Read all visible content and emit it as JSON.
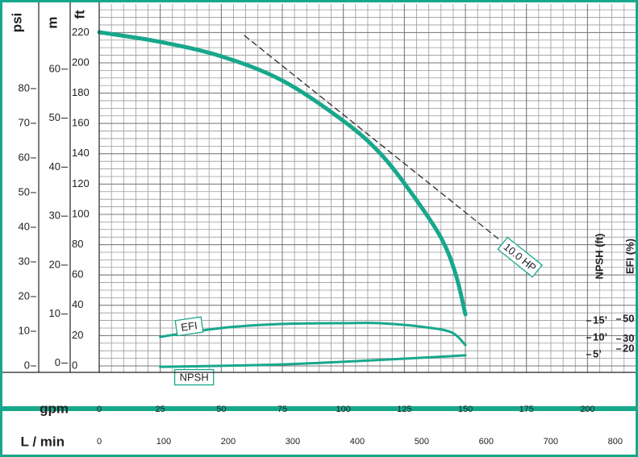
{
  "chart_data": {
    "type": "line",
    "x_label": "gpm",
    "xlim": [
      0,
      219.7
    ],
    "xticks": [
      0,
      25,
      50,
      75,
      100,
      125,
      150,
      175,
      200
    ],
    "x2_label": "L / min",
    "x2lim": [
      0,
      831.5
    ],
    "x2ticks": [
      0,
      100,
      200,
      300,
      400,
      500,
      600,
      700,
      800
    ],
    "y_axes": [
      {
        "label": "psi",
        "lim": [
          -1.86,
          104.4
        ],
        "ticks": [
          0,
          10,
          20,
          30,
          40,
          50,
          60,
          70,
          80
        ]
      },
      {
        "label": "m",
        "lim": [
          -1.9,
          73.3
        ],
        "ticks": [
          0,
          10,
          20,
          30,
          40,
          50,
          60
        ]
      },
      {
        "label": "ft",
        "lim": [
          -4.26,
          238.8
        ],
        "ticks": [
          0,
          20,
          40,
          60,
          80,
          100,
          120,
          140,
          160,
          180,
          200,
          220
        ]
      }
    ],
    "right_axes": [
      {
        "label": "NPSH (ft)",
        "lim": [
          -0.24,
          108.6
        ],
        "ticks": [
          {
            "value": 5,
            "label": "5’"
          },
          {
            "value": 10,
            "label": "10’"
          },
          {
            "value": 15,
            "label": "15’"
          }
        ]
      },
      {
        "label": "EFI (%)",
        "lim": [
          -3.5,
          367
        ],
        "ticks": [
          20,
          30,
          50
        ]
      }
    ],
    "grid": true,
    "color": "#17a88c",
    "curve": {
      "axis": "ft",
      "x": [
        0,
        25,
        50,
        75,
        100,
        115,
        128,
        140,
        146,
        150
      ],
      "values": [
        220.2,
        213.8,
        204.3,
        188.3,
        161.7,
        140.4,
        113.8,
        84.6,
        60.6,
        34.0
      ]
    },
    "series": [
      {
        "name": "EFI",
        "axis": "EFI (%)",
        "x": [
          25,
          50,
          75,
          100,
          115,
          131,
          144,
          150
        ],
        "values": [
          32.2,
          41.1,
          45.2,
          46.0,
          46.0,
          42.7,
          37.0,
          24.0
        ]
      },
      {
        "name": "NPSH",
        "axis": "NPSH (ft)",
        "x": [
          25,
          50,
          75,
          100,
          125,
          150
        ],
        "values": [
          1.4,
          1.7,
          2.1,
          2.9,
          3.8,
          4.8
        ]
      }
    ],
    "power_line": {
      "name": "10.0 HP",
      "axis": "ft",
      "x": [
        59.5,
        164.2
      ],
      "values": [
        218,
        83
      ]
    }
  }
}
